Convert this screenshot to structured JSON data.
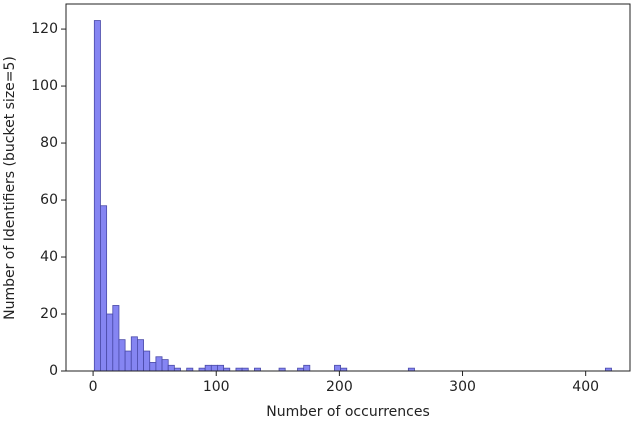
{
  "chart_data": {
    "type": "histogram",
    "xlabel": "Number of occurrences",
    "ylabel": "Number of Identifiers (bucket size=5)",
    "bins": [
      1,
      6,
      11,
      16,
      21,
      26,
      31,
      36,
      41,
      46,
      51,
      56,
      61,
      66,
      71,
      76,
      81,
      86,
      91,
      96,
      101,
      106,
      111,
      116,
      121,
      126,
      131,
      136,
      141,
      146,
      151,
      156,
      161,
      166,
      171,
      176,
      181,
      186,
      191,
      196,
      201,
      206,
      211,
      216,
      221,
      226,
      231,
      236,
      241,
      246,
      251,
      256,
      261,
      266,
      271,
      276,
      281,
      286,
      291,
      296,
      301,
      306,
      311,
      316,
      321,
      326,
      331,
      336,
      341,
      346,
      351,
      356,
      361,
      366,
      371,
      376,
      381,
      386,
      391,
      396,
      401,
      406,
      411,
      416,
      421
    ],
    "values": [
      123,
      58,
      20,
      23,
      11,
      7,
      12,
      11,
      7,
      3,
      5,
      4,
      2,
      1,
      0,
      1,
      0,
      1,
      2,
      2,
      2,
      1,
      0,
      1,
      1,
      0,
      1,
      0,
      0,
      0,
      1,
      0,
      0,
      1,
      2,
      0,
      0,
      0,
      0,
      2,
      1,
      0,
      0,
      0,
      0,
      0,
      0,
      0,
      0,
      0,
      0,
      1,
      0,
      0,
      0,
      0,
      0,
      0,
      0,
      0,
      0,
      0,
      0,
      0,
      0,
      0,
      0,
      0,
      0,
      0,
      0,
      0,
      0,
      0,
      0,
      0,
      0,
      0,
      0,
      0,
      0,
      0,
      0,
      1
    ],
    "color": "#8585f2",
    "xlim": [
      -22,
      436
    ],
    "ylim": [
      0,
      128.8
    ],
    "xticks": [
      0,
      100,
      200,
      300,
      400
    ],
    "yticks": [
      0,
      20,
      40,
      60,
      80,
      100,
      120
    ]
  }
}
